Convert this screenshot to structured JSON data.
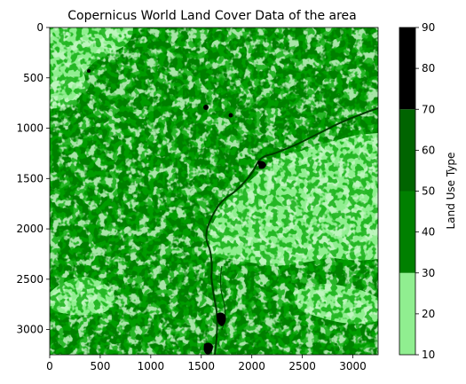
{
  "chart_data": {
    "type": "heatmap",
    "title": "Copernicus World Land Cover Data of the area",
    "xlabel": "",
    "ylabel": "",
    "x_range": [
      0,
      3250
    ],
    "y_range": [
      3250,
      0
    ],
    "x_ticks": [
      0,
      500,
      1000,
      1500,
      2000,
      2500,
      3000
    ],
    "y_ticks": [
      0,
      500,
      1000,
      1500,
      2000,
      2500,
      3000
    ],
    "grid": false,
    "colorbar": {
      "label": "Land Use Type",
      "range": [
        10,
        90
      ],
      "ticks": [
        10,
        20,
        30,
        40,
        50,
        60,
        70,
        80,
        90
      ],
      "bands": [
        {
          "from": 10,
          "to": 30,
          "color": "#90ee90"
        },
        {
          "from": 30,
          "to": 50,
          "color": "#008000"
        },
        {
          "from": 50,
          "to": 70,
          "color": "#006400"
        },
        {
          "from": 70,
          "to": 90,
          "color": "#000000"
        }
      ]
    }
  }
}
